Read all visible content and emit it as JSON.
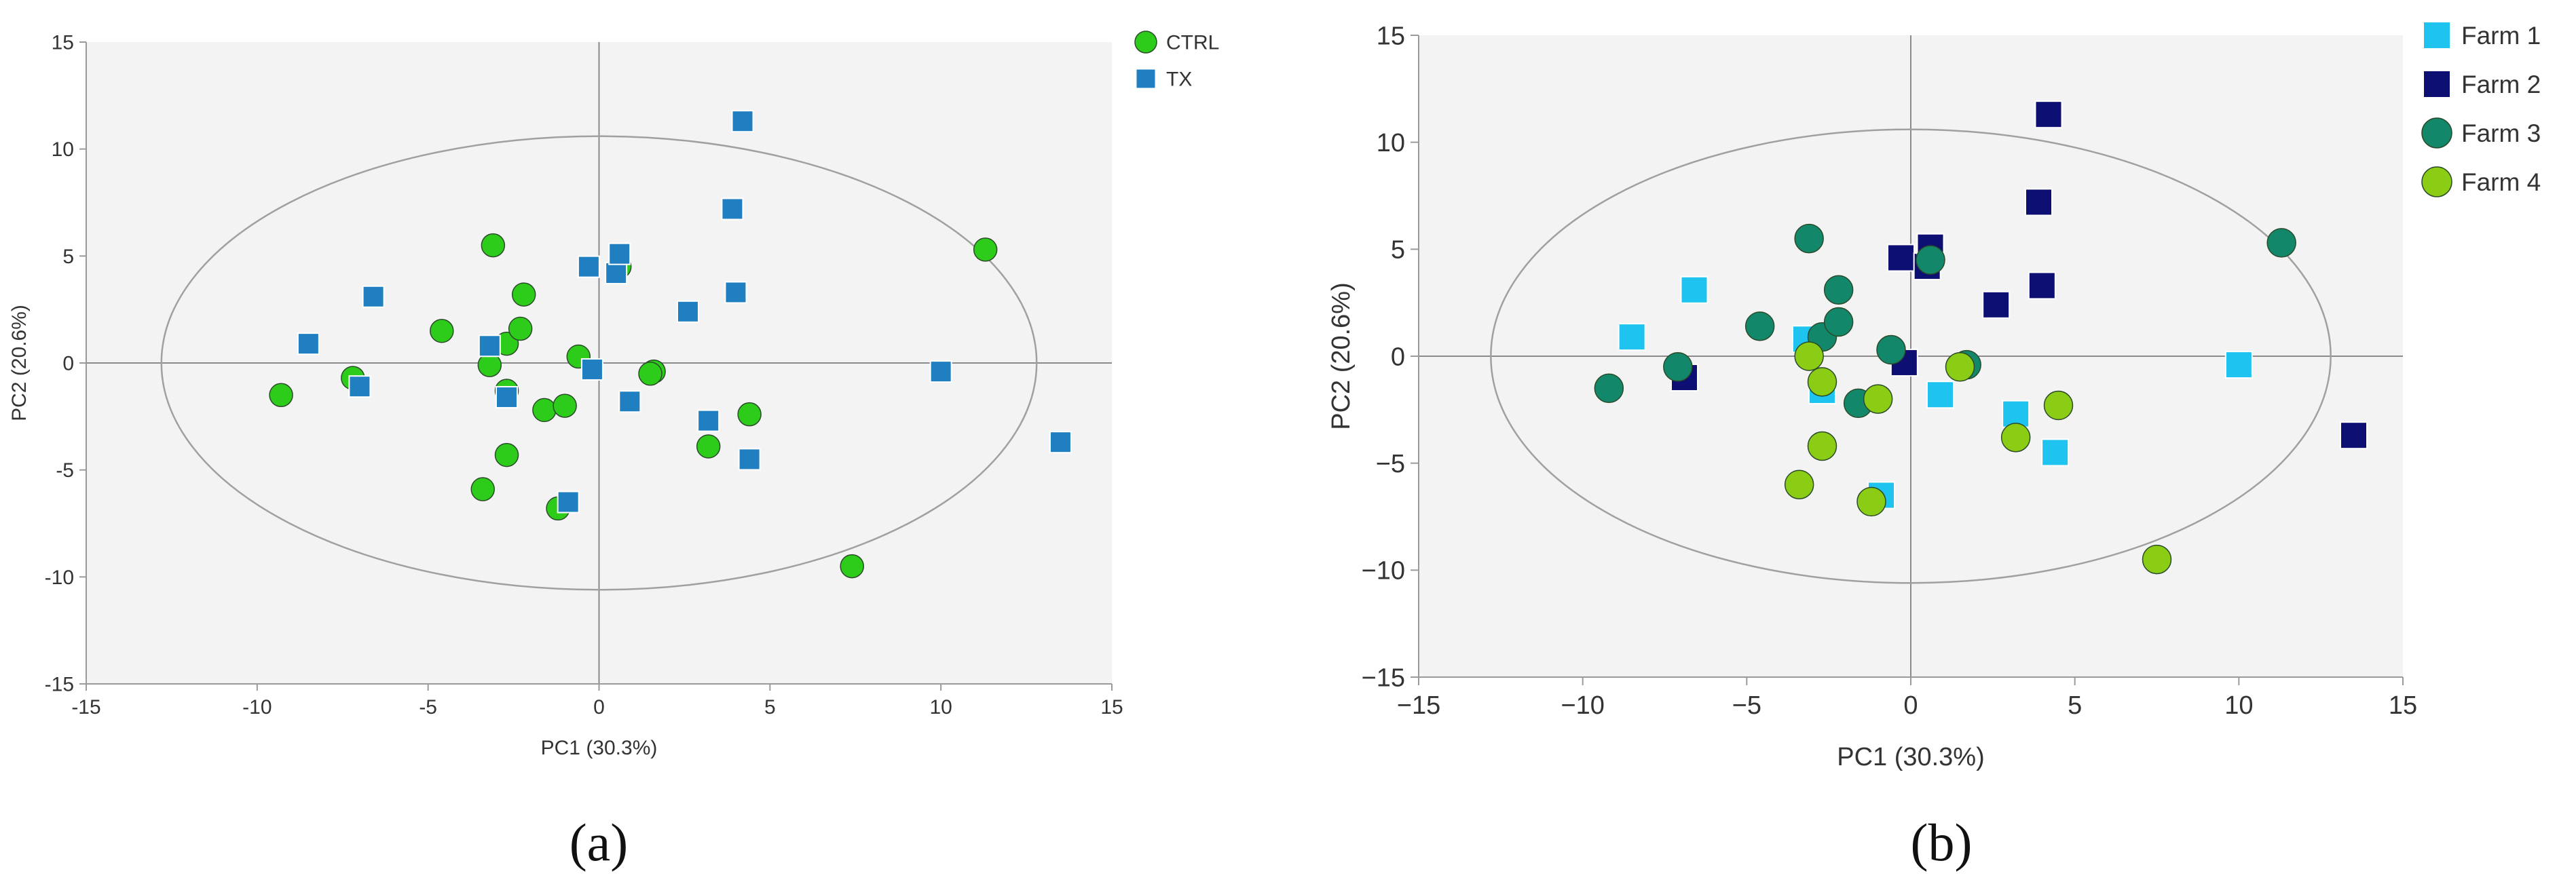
{
  "chart_data": [
    {
      "type": "scatter",
      "panel_label": "(a)",
      "xlabel": "PC1 (30.3%)",
      "ylabel": "PC2 (20.6%)",
      "xlim": [
        -15,
        15
      ],
      "ylim": [
        -15,
        15
      ],
      "xticks": [
        -15,
        -10,
        -5,
        0,
        5,
        10,
        15
      ],
      "yticks": [
        -15,
        -10,
        -5,
        0,
        5,
        10,
        15
      ],
      "xtick_labels": [
        "-15",
        "-10",
        "-5",
        "0",
        "5",
        "10",
        "15"
      ],
      "ytick_labels": [
        "-15",
        "-10",
        "-5",
        "0",
        "5",
        "10",
        "15"
      ],
      "ellipse": {
        "center": [
          0,
          0
        ],
        "rx": 12.8,
        "ry": 10.6
      },
      "legend_position": "top-right",
      "series": [
        {
          "name": "CTRL",
          "marker": "circle",
          "color": "#2ecc1a",
          "x": [
            -9.3,
            -7.2,
            -4.6,
            -3.1,
            -3.2,
            -2.7,
            -2.7,
            -2.3,
            -2.2,
            -1.6,
            -1.0,
            -0.6,
            0.6,
            1.6,
            1.5,
            4.4,
            3.2,
            -2.7,
            -3.4,
            -1.2,
            11.3,
            7.4
          ],
          "y": [
            -1.5,
            -0.7,
            1.5,
            5.5,
            -0.1,
            0.9,
            -1.3,
            1.6,
            3.2,
            -2.2,
            -2.0,
            0.3,
            4.5,
            -0.4,
            -0.5,
            -2.4,
            -3.9,
            -4.3,
            -5.9,
            -6.8,
            5.3,
            -9.5
          ]
        },
        {
          "name": "TX",
          "marker": "square",
          "color": "#1f7fc1",
          "x": [
            -8.5,
            -7.0,
            -6.6,
            -3.2,
            -2.7,
            -0.3,
            -0.2,
            0.5,
            0.6,
            0.9,
            2.6,
            3.9,
            4.0,
            4.2,
            3.2,
            4.4,
            10.0,
            13.5,
            -0.9
          ],
          "y": [
            0.9,
            -1.1,
            3.1,
            0.8,
            -1.6,
            4.5,
            -0.3,
            4.2,
            5.1,
            -1.8,
            2.4,
            7.2,
            3.3,
            11.3,
            -2.7,
            -4.5,
            -0.4,
            -3.7,
            -6.5
          ]
        }
      ]
    },
    {
      "type": "scatter",
      "panel_label": "(b)",
      "xlabel": "PC1 (30.3%)",
      "ylabel": "PC2 (20.6%)",
      "xlim": [
        -15,
        15
      ],
      "ylim": [
        -15,
        15
      ],
      "xticks": [
        -15,
        -10,
        -5,
        0,
        5,
        10,
        15
      ],
      "yticks": [
        -15,
        -10,
        -5,
        0,
        5,
        10,
        15
      ],
      "xtick_labels": [
        "−15",
        "−10",
        "−5",
        "0",
        "5",
        "10",
        "15"
      ],
      "ytick_labels": [
        "−15",
        "−10",
        "−5",
        "0",
        "5",
        "10",
        "15"
      ],
      "ellipse": {
        "center": [
          0,
          0
        ],
        "rx": 12.8,
        "ry": 10.6
      },
      "legend_position": "top-right",
      "series": [
        {
          "name": "Farm 1",
          "marker": "square",
          "color": "#1ec3ef",
          "x": [
            -8.5,
            -6.6,
            -3.2,
            -2.7,
            0.9,
            3.2,
            4.4,
            10.0,
            -0.9
          ],
          "y": [
            0.9,
            3.1,
            0.8,
            -1.6,
            -1.8,
            -2.7,
            -4.5,
            -0.4,
            -6.5
          ]
        },
        {
          "name": "Farm 2",
          "marker": "square",
          "color": "#0d0f73",
          "x": [
            -6.9,
            -0.3,
            -0.2,
            0.5,
            0.6,
            2.6,
            3.9,
            4.0,
            4.2,
            13.5
          ],
          "y": [
            -1.0,
            4.6,
            -0.3,
            4.2,
            5.1,
            2.4,
            7.2,
            3.3,
            11.3,
            -3.7
          ]
        },
        {
          "name": "Farm 3",
          "marker": "circle",
          "color": "#13876a",
          "x": [
            -9.2,
            -7.1,
            -4.6,
            -3.1,
            -2.7,
            -2.2,
            -2.2,
            -1.6,
            -0.6,
            0.6,
            1.7,
            11.3
          ],
          "y": [
            -1.5,
            -0.5,
            1.4,
            5.5,
            0.9,
            1.6,
            3.1,
            -2.2,
            0.3,
            4.5,
            -0.4,
            5.3
          ]
        },
        {
          "name": "Farm 4",
          "marker": "circle",
          "color": "#8bcc14",
          "x": [
            -3.1,
            -2.7,
            -1.0,
            1.5,
            -2.7,
            3.2,
            4.5,
            -3.4,
            -1.2,
            7.5
          ],
          "y": [
            0.0,
            -1.2,
            -2.0,
            -0.5,
            -4.2,
            -3.8,
            -2.3,
            -6.0,
            -6.8,
            -9.5
          ]
        }
      ]
    }
  ]
}
